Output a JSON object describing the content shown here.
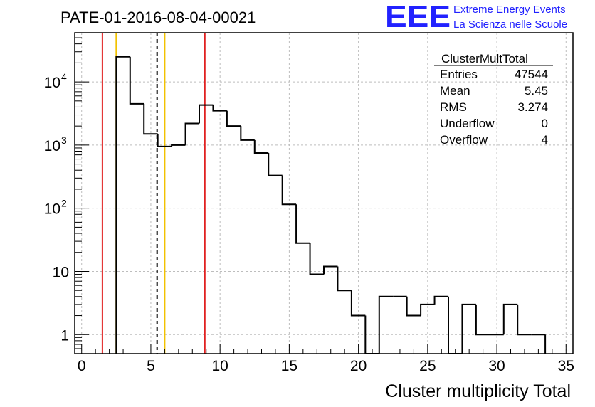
{
  "title": "PATE-01-2016-08-04-00021",
  "logo": {
    "mark": "EEE",
    "line1": "Extreme Energy Events",
    "line2": "La Scienza nelle Scuole"
  },
  "stats": {
    "name": "ClusterMultTotal",
    "rows": [
      {
        "label": "Entries",
        "value": "47544"
      },
      {
        "label": "Mean",
        "value": "5.45"
      },
      {
        "label": "RMS",
        "value": "3.274"
      },
      {
        "label": "Underflow",
        "value": "0"
      },
      {
        "label": "Overflow",
        "value": "4"
      }
    ]
  },
  "chart_data": {
    "type": "histogram",
    "title": "PATE-01-2016-08-04-00021",
    "xlabel": "Cluster multiplicity Total",
    "ylabel": "",
    "xlim": [
      -0.5,
      35.5
    ],
    "ylim": [
      0.5,
      60000
    ],
    "yscale": "log",
    "grid": true,
    "x_ticks": [
      "0",
      "5",
      "10",
      "15",
      "20",
      "25",
      "30",
      "35"
    ],
    "y_ticks": [
      {
        "base": "1",
        "exp": ""
      },
      {
        "base": "10",
        "exp": ""
      },
      {
        "base": "10",
        "exp": "2"
      },
      {
        "base": "10",
        "exp": "3"
      },
      {
        "base": "10",
        "exp": "4"
      }
    ],
    "bin_width": 1,
    "bin_edges_start": 2.5,
    "counts": [
      25000,
      4500,
      1500,
      950,
      1000,
      2200,
      4300,
      3500,
      2000,
      1200,
      750,
      330,
      115,
      28,
      9,
      12,
      5,
      2,
      0,
      4,
      4,
      2,
      3,
      4,
      0,
      3,
      1,
      1,
      3,
      1,
      1
    ],
    "vertical_lines": [
      {
        "x": 1.5,
        "color": "#e02020",
        "style": "solid"
      },
      {
        "x": 2.5,
        "color": "#f2c200",
        "style": "solid"
      },
      {
        "x": 5.45,
        "color": "#000000",
        "style": "dashed"
      },
      {
        "x": 6.0,
        "color": "#f2c200",
        "style": "solid"
      },
      {
        "x": 8.9,
        "color": "#e02020",
        "style": "solid"
      }
    ]
  }
}
